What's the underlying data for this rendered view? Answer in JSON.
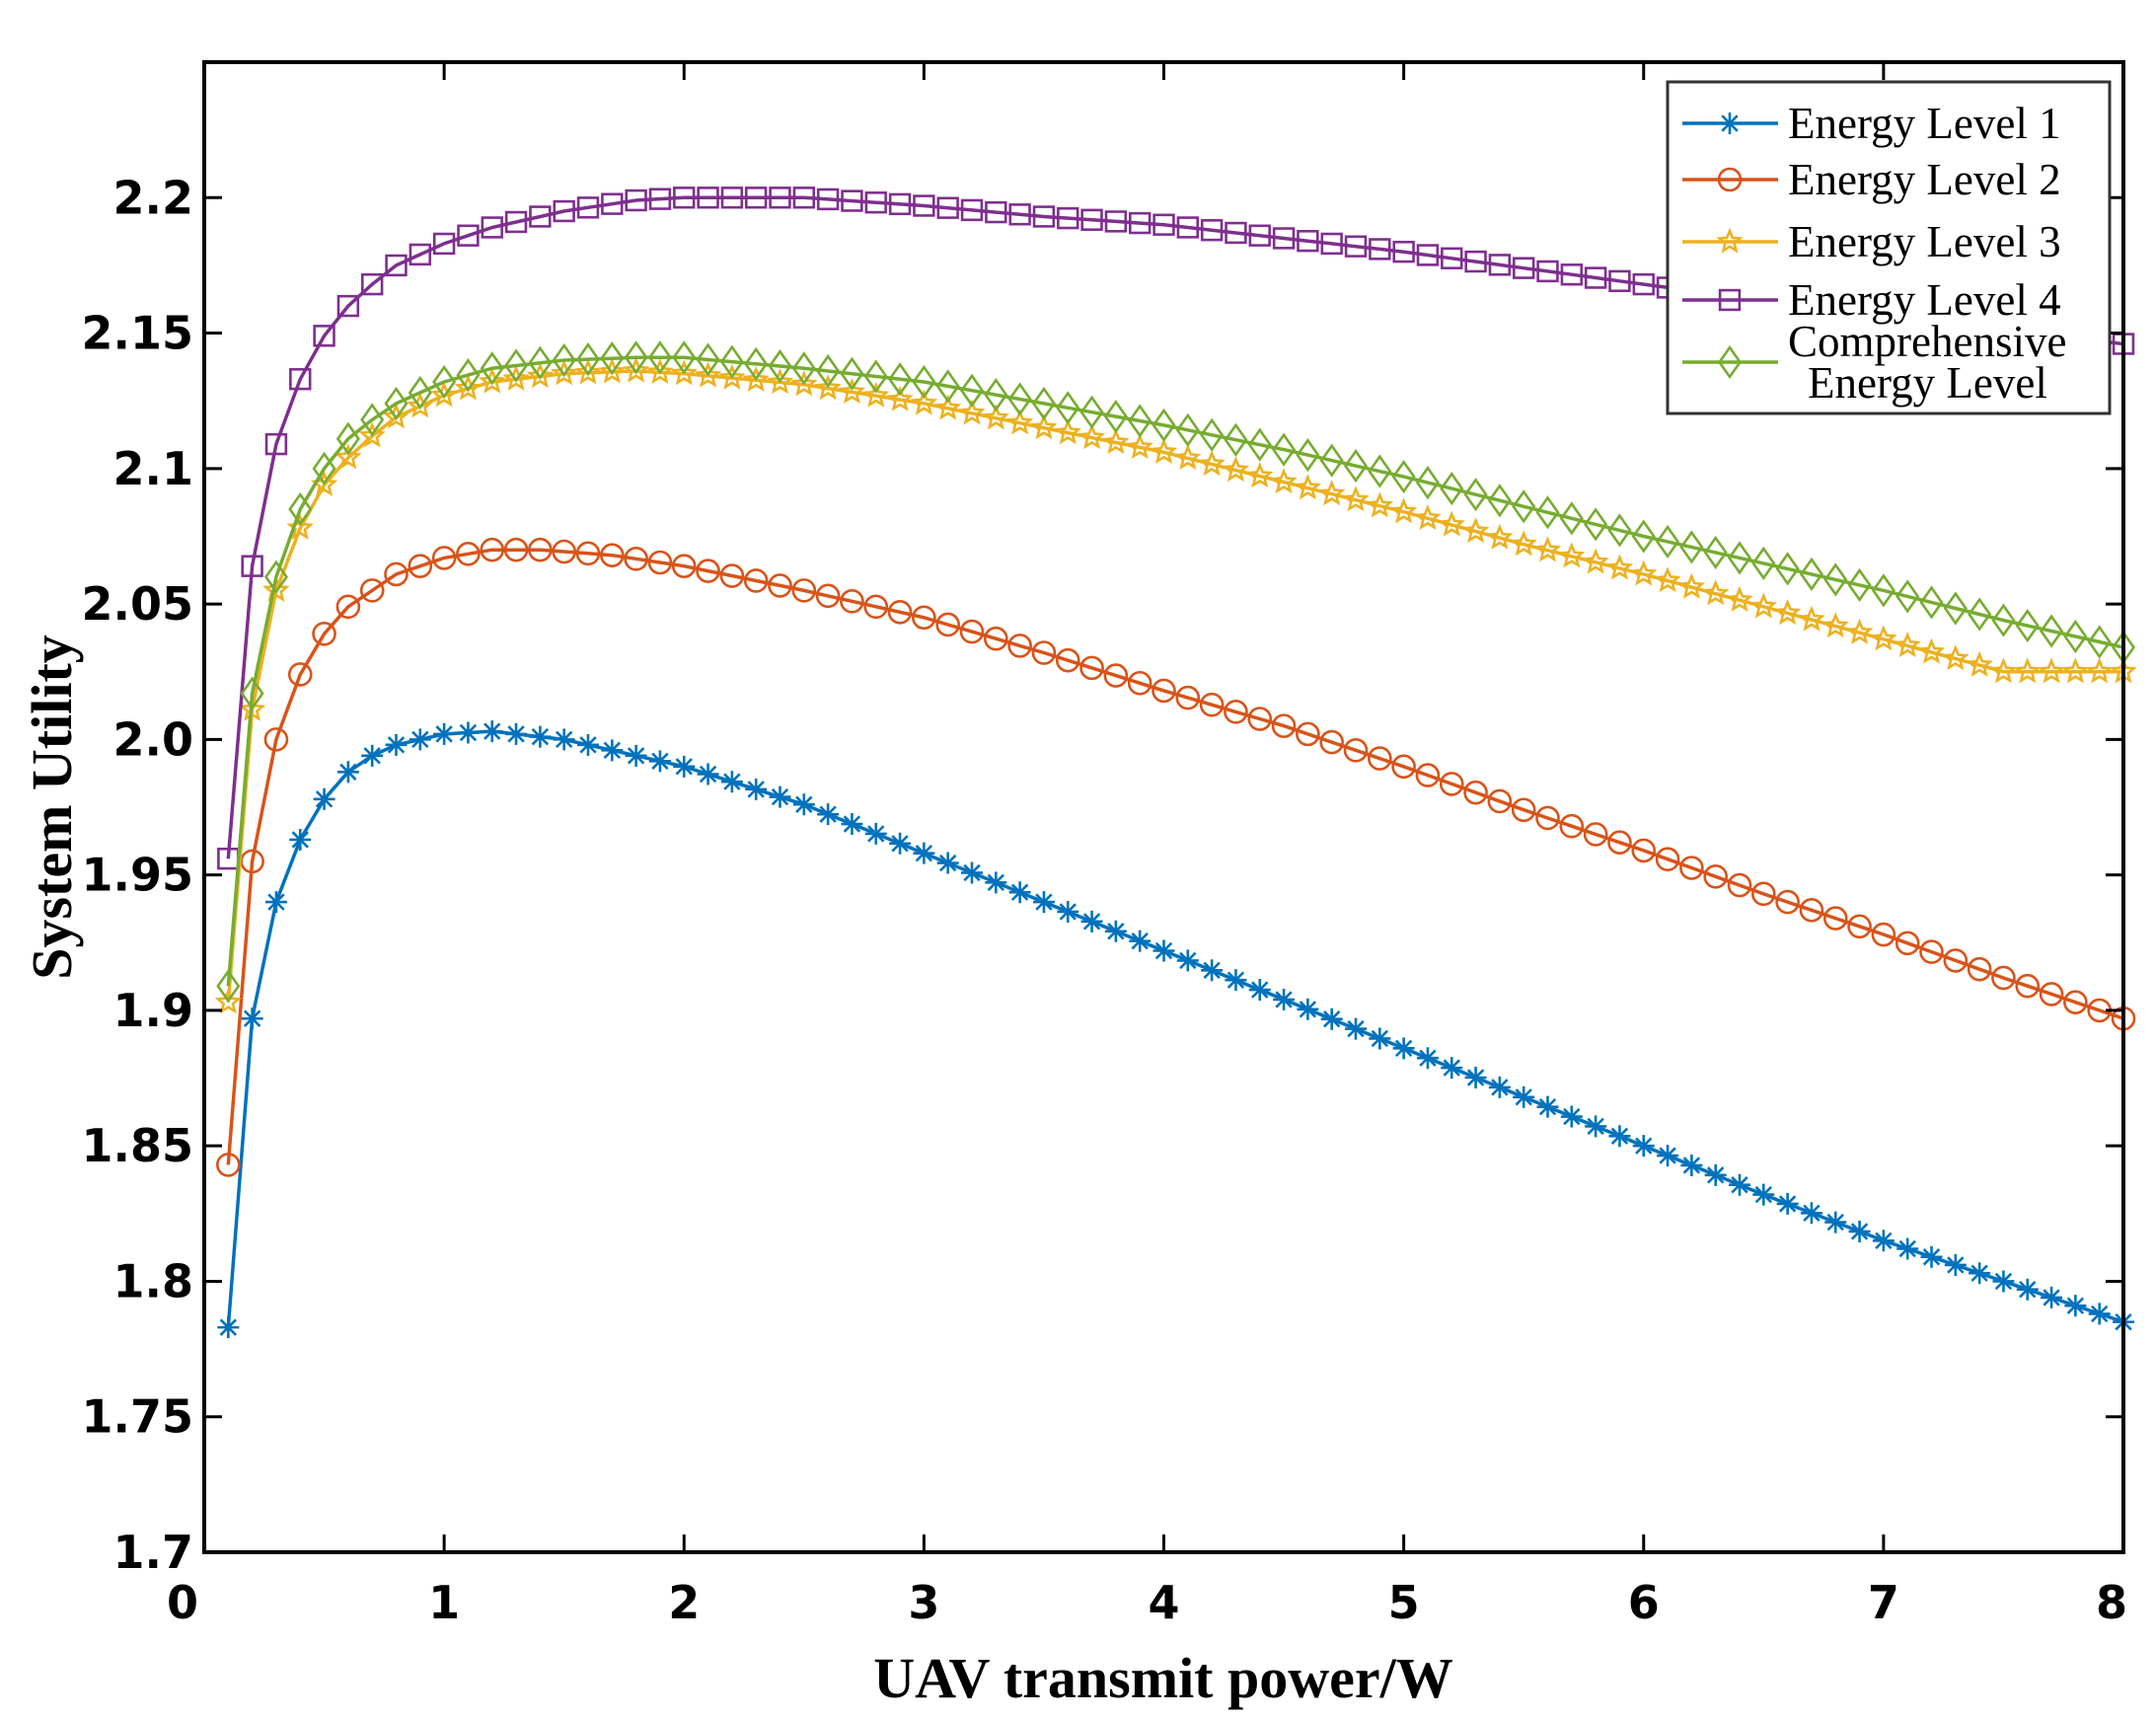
{
  "chart_data": {
    "type": "line",
    "title": "",
    "xlabel": "UAV transmit power/W",
    "ylabel": "System Utility",
    "xlim": [
      0,
      8
    ],
    "ylim": [
      1.7,
      2.25
    ],
    "x_ticks": [
      "0",
      "1",
      "2",
      "3",
      "4",
      "5",
      "6",
      "7",
      "8"
    ],
    "y_ticks": [
      "1.7",
      "1.75",
      "1.8",
      "1.85",
      "1.9",
      "1.95",
      "2.0",
      "2.05",
      "2.1",
      "2.15",
      "2.2"
    ],
    "grid": false,
    "legend_position": "top-right",
    "x_range": [
      0.1,
      8.0
    ],
    "x_step": 0.1,
    "series": [
      {
        "name": "Energy Level 1",
        "color": "#0072BD",
        "marker": "asterisk",
        "keypoints": [
          [
            0.1,
            1.783
          ],
          [
            0.2,
            1.897
          ],
          [
            0.3,
            1.94
          ],
          [
            0.4,
            1.963
          ],
          [
            0.5,
            1.978
          ],
          [
            0.6,
            1.988
          ],
          [
            0.7,
            1.994
          ],
          [
            0.8,
            1.998
          ],
          [
            1.0,
            2.002
          ],
          [
            1.2,
            2.003
          ],
          [
            1.5,
            2.0
          ],
          [
            2.0,
            1.99
          ],
          [
            2.5,
            1.976
          ],
          [
            3.0,
            1.958
          ],
          [
            3.5,
            1.94
          ],
          [
            4.0,
            1.922
          ],
          [
            4.5,
            1.904
          ],
          [
            5.0,
            1.886
          ],
          [
            5.5,
            1.868
          ],
          [
            6.0,
            1.85
          ],
          [
            6.5,
            1.832
          ],
          [
            7.0,
            1.815
          ],
          [
            7.5,
            1.8
          ],
          [
            8.0,
            1.785
          ]
        ]
      },
      {
        "name": "Energy Level 2",
        "color": "#D95319",
        "marker": "circle",
        "keypoints": [
          [
            0.1,
            1.843
          ],
          [
            0.2,
            1.955
          ],
          [
            0.3,
            2.0
          ],
          [
            0.4,
            2.024
          ],
          [
            0.5,
            2.039
          ],
          [
            0.6,
            2.049
          ],
          [
            0.7,
            2.055
          ],
          [
            0.8,
            2.061
          ],
          [
            1.0,
            2.067
          ],
          [
            1.2,
            2.07
          ],
          [
            1.4,
            2.07
          ],
          [
            1.7,
            2.068
          ],
          [
            2.0,
            2.064
          ],
          [
            2.5,
            2.055
          ],
          [
            3.0,
            2.045
          ],
          [
            3.5,
            2.032
          ],
          [
            4.0,
            2.018
          ],
          [
            4.5,
            2.005
          ],
          [
            5.0,
            1.99
          ],
          [
            5.5,
            1.974
          ],
          [
            6.0,
            1.959
          ],
          [
            6.5,
            1.943
          ],
          [
            7.0,
            1.928
          ],
          [
            7.5,
            1.912
          ],
          [
            8.0,
            1.897
          ]
        ]
      },
      {
        "name": "Energy Level 3",
        "color": "#EDB120",
        "marker": "star",
        "keypoints": [
          [
            0.1,
            1.903
          ],
          [
            0.2,
            2.011
          ],
          [
            0.3,
            2.055
          ],
          [
            0.4,
            2.078
          ],
          [
            0.5,
            2.094
          ],
          [
            0.6,
            2.104
          ],
          [
            0.7,
            2.112
          ],
          [
            0.8,
            2.119
          ],
          [
            1.0,
            2.127
          ],
          [
            1.2,
            2.132
          ],
          [
            1.5,
            2.135
          ],
          [
            1.8,
            2.136
          ],
          [
            2.0,
            2.135
          ],
          [
            2.5,
            2.131
          ],
          [
            3.0,
            2.124
          ],
          [
            3.5,
            2.115
          ],
          [
            4.0,
            2.106
          ],
          [
            4.5,
            2.095
          ],
          [
            5.0,
            2.084
          ],
          [
            5.5,
            2.072
          ],
          [
            6.0,
            2.061
          ],
          [
            6.5,
            2.049
          ],
          [
            7.0,
            2.037
          ],
          [
            7.5,
            2.025
          ],
          [
            8.0,
            2.025
          ]
        ]
      },
      {
        "name": "Energy Level 4",
        "color": "#7E2F8E",
        "marker": "square",
        "keypoints": [
          [
            0.1,
            1.956
          ],
          [
            0.2,
            2.064
          ],
          [
            0.3,
            2.109
          ],
          [
            0.4,
            2.133
          ],
          [
            0.5,
            2.149
          ],
          [
            0.6,
            2.16
          ],
          [
            0.7,
            2.168
          ],
          [
            0.8,
            2.175
          ],
          [
            1.0,
            2.183
          ],
          [
            1.2,
            2.189
          ],
          [
            1.5,
            2.195
          ],
          [
            1.8,
            2.199
          ],
          [
            2.0,
            2.2
          ],
          [
            2.5,
            2.2
          ],
          [
            3.0,
            2.197
          ],
          [
            3.5,
            2.193
          ],
          [
            4.0,
            2.19
          ],
          [
            4.5,
            2.185
          ],
          [
            5.0,
            2.18
          ],
          [
            5.5,
            2.174
          ],
          [
            6.0,
            2.168
          ],
          [
            6.5,
            2.162
          ],
          [
            7.0,
            2.157
          ],
          [
            7.5,
            2.151
          ],
          [
            8.0,
            2.146
          ]
        ]
      },
      {
        "name": "Comprehensive Energy Level",
        "color": "#77AC30",
        "marker": "diamond",
        "keypoints": [
          [
            0.1,
            1.909
          ],
          [
            0.2,
            2.017
          ],
          [
            0.3,
            2.06
          ],
          [
            0.4,
            2.085
          ],
          [
            0.5,
            2.1
          ],
          [
            0.6,
            2.111
          ],
          [
            0.7,
            2.118
          ],
          [
            0.8,
            2.124
          ],
          [
            1.0,
            2.132
          ],
          [
            1.2,
            2.137
          ],
          [
            1.5,
            2.14
          ],
          [
            1.8,
            2.141
          ],
          [
            2.0,
            2.141
          ],
          [
            2.5,
            2.137
          ],
          [
            3.0,
            2.132
          ],
          [
            3.5,
            2.124
          ],
          [
            4.0,
            2.116
          ],
          [
            4.5,
            2.107
          ],
          [
            5.0,
            2.097
          ],
          [
            5.5,
            2.086
          ],
          [
            6.0,
            2.075
          ],
          [
            6.5,
            2.065
          ],
          [
            7.0,
            2.055
          ],
          [
            7.5,
            2.044
          ],
          [
            8.0,
            2.034
          ]
        ]
      }
    ],
    "legend_labels": [
      [
        "Energy Level 1"
      ],
      [
        "Energy Level 2"
      ],
      [
        "Energy Level 3"
      ],
      [
        "Energy Level 4"
      ],
      [
        "Comprehensive",
        "Energy Level"
      ]
    ]
  }
}
